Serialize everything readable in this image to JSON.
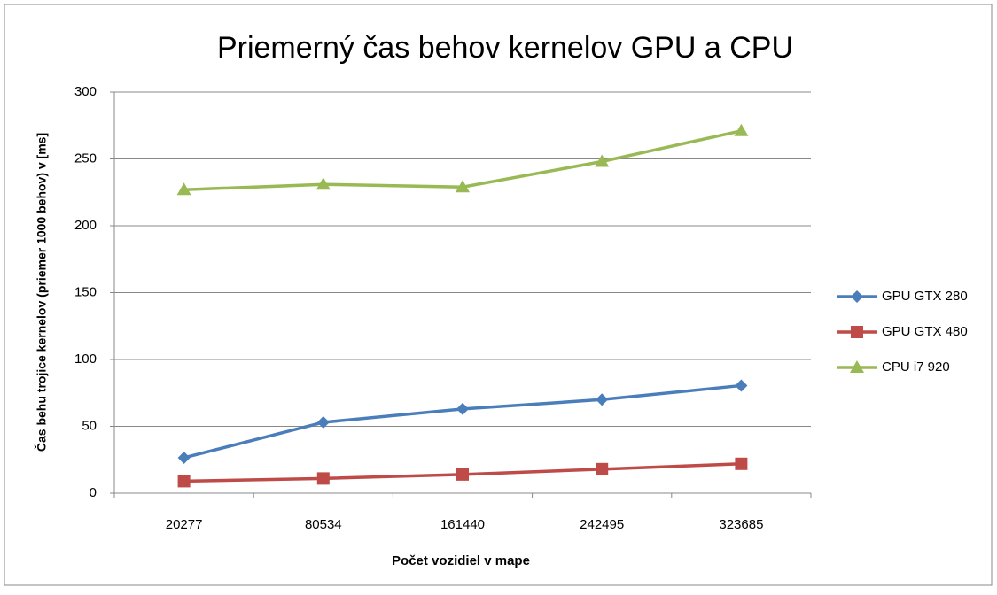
{
  "chart_data": {
    "type": "line",
    "title": "Priemerný čas behov kernelov GPU a CPU",
    "x_label": "Počet vozidiel v mape",
    "y_label": "Čas behu trojice kernelov (priemer 1000 behov) v [ms]",
    "categories": [
      "20277",
      "80534",
      "161440",
      "242495",
      "323685"
    ],
    "series": [
      {
        "name": "GPU GTX 280",
        "color": "#4a7ebb",
        "marker": "diamond",
        "values": [
          26.5,
          53,
          63,
          70,
          80.5
        ]
      },
      {
        "name": "GPU GTX 480",
        "color": "#be4b48",
        "marker": "square",
        "values": [
          9,
          11,
          14,
          18,
          22
        ]
      },
      {
        "name": "CPU i7 920",
        "color": "#98b954",
        "marker": "triangle",
        "values": [
          227,
          231,
          229,
          248,
          271
        ]
      }
    ],
    "ylim": [
      0,
      300
    ],
    "yticks": [
      0,
      50,
      100,
      150,
      200,
      250,
      300
    ],
    "grid": true,
    "legend": "right"
  }
}
